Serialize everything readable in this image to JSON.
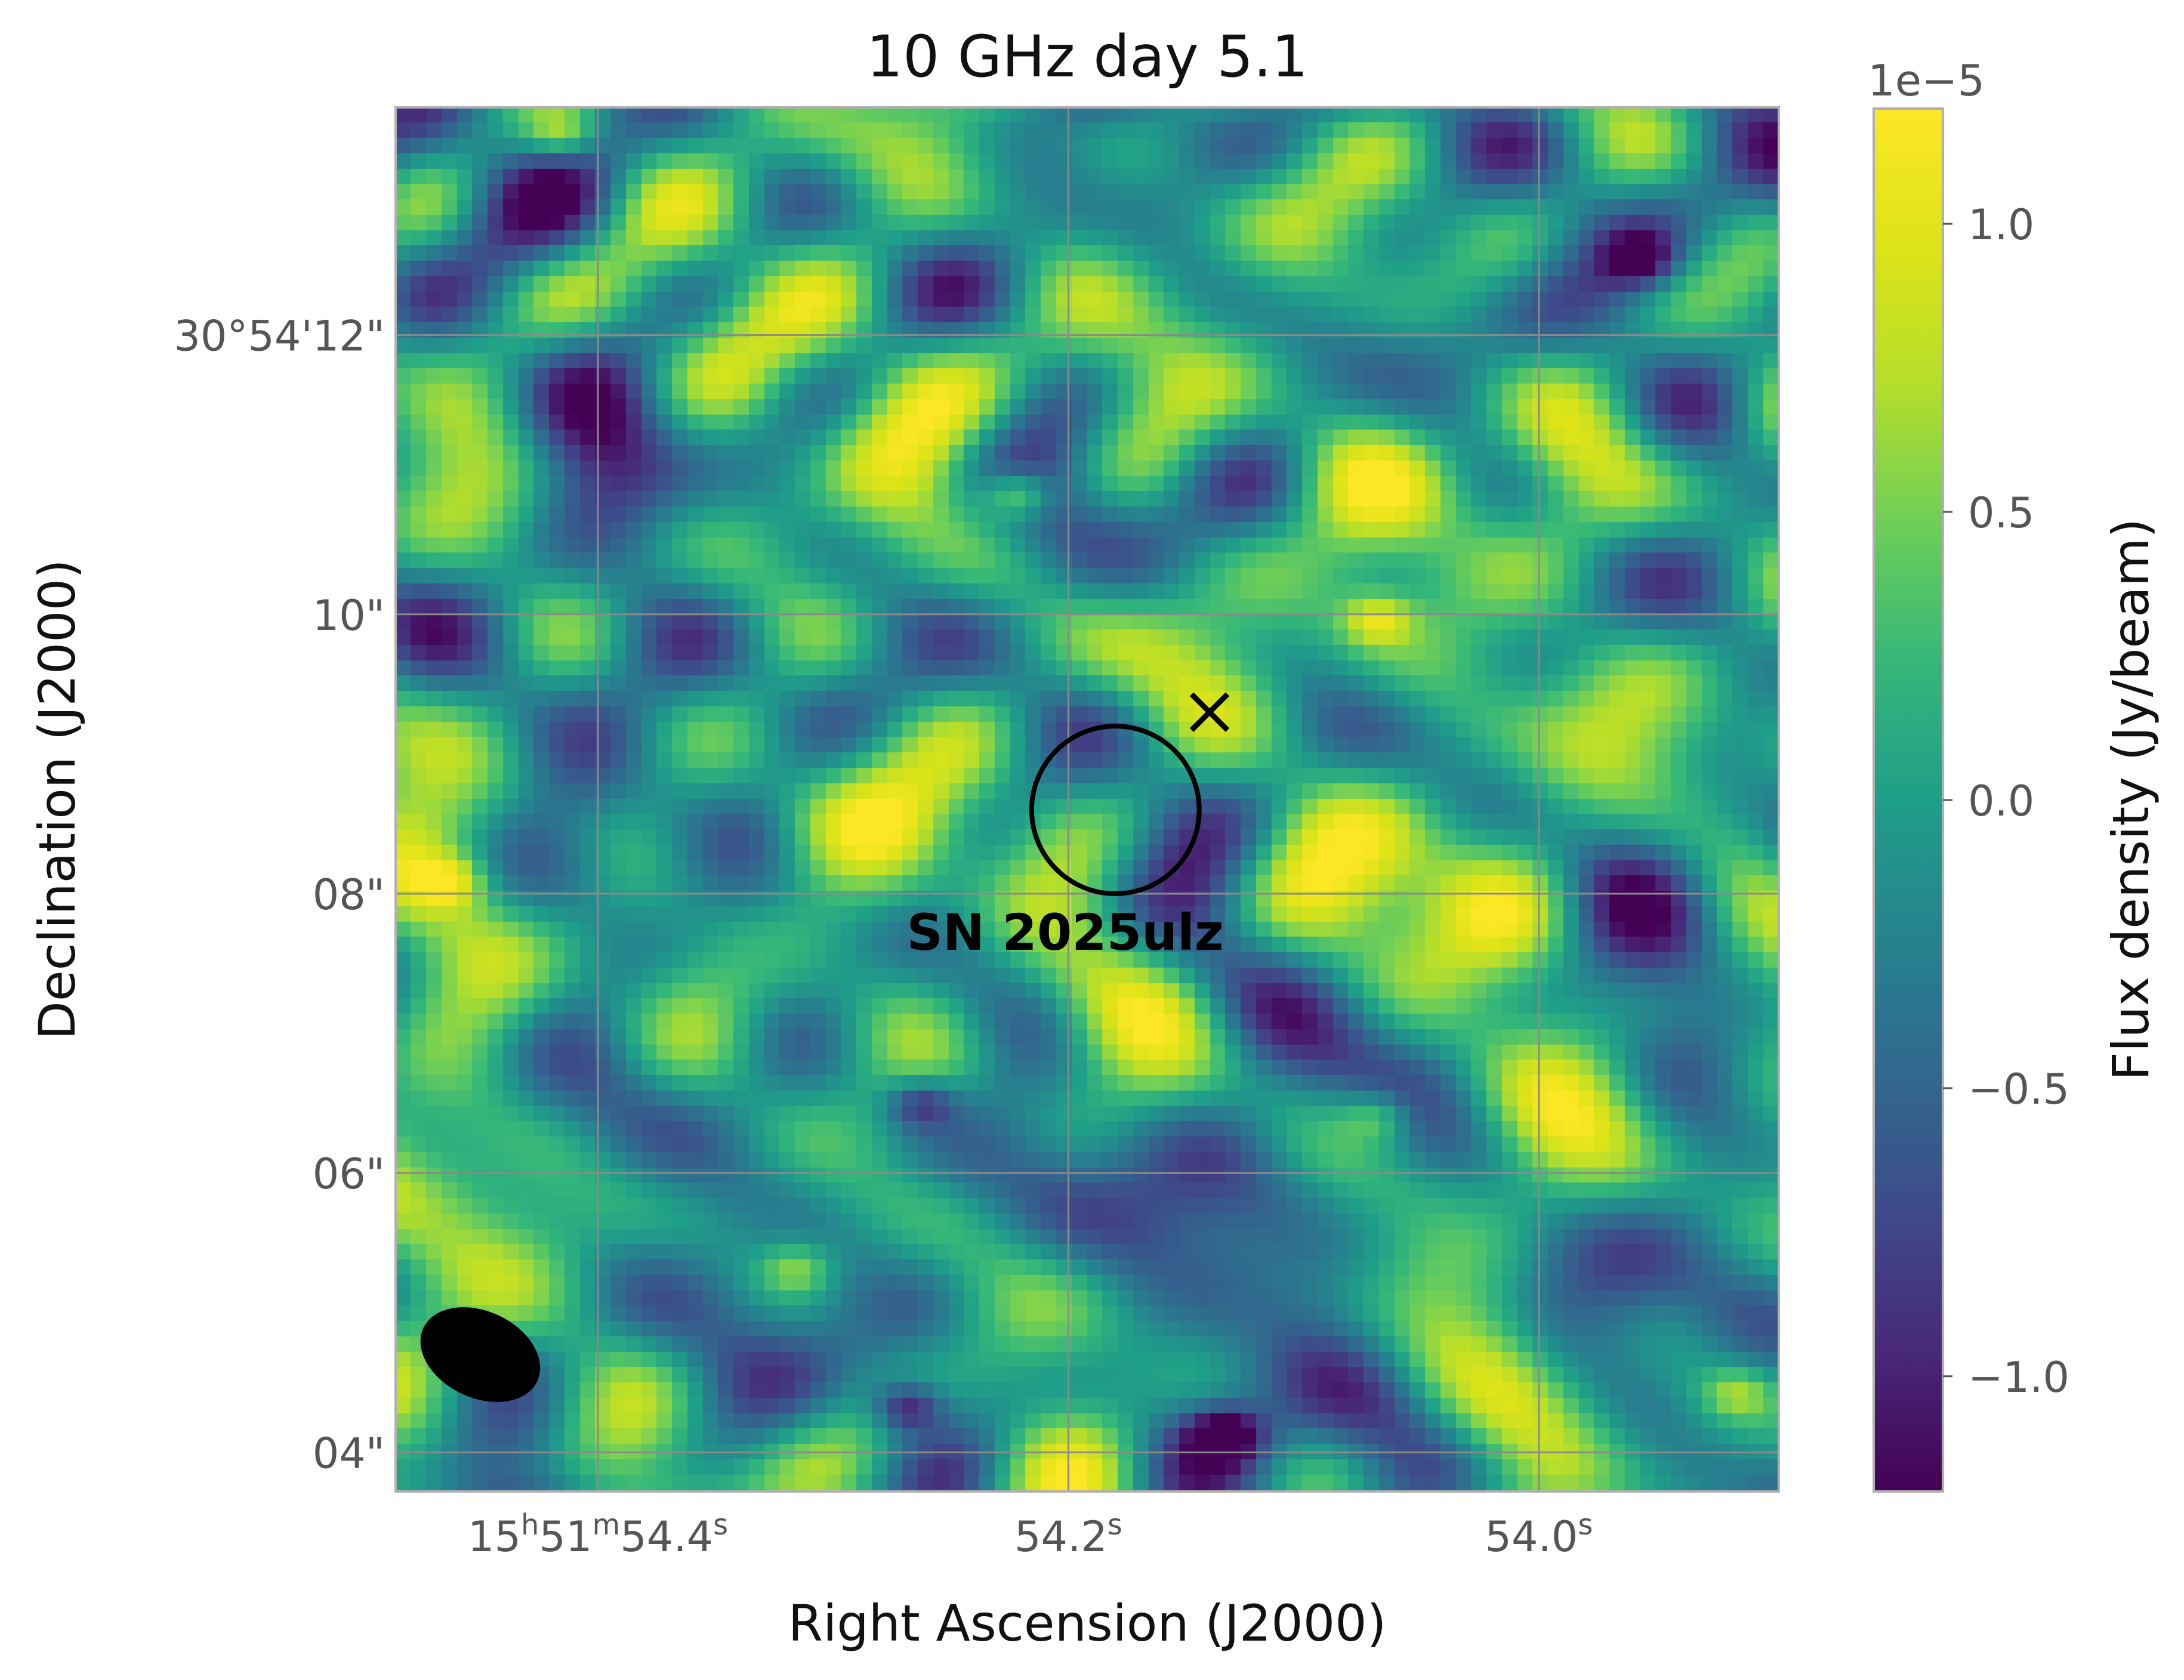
{
  "chart_data": {
    "type": "heatmap",
    "title": "10 GHz day 5.1",
    "xlabel": "Right Ascension (J2000)",
    "ylabel": "Declination (J2000)",
    "x_ticks": [
      {
        "h": "15",
        "hu": "h",
        "m": "51",
        "mu": "m",
        "s": "54.4",
        "su": "s",
        "ra_sec": 54.4
      },
      {
        "s": "54.2",
        "su": "s",
        "ra_sec": 54.2
      },
      {
        "s": "54.0",
        "su": "s",
        "ra_sec": 54.0
      }
    ],
    "y_ticks": [
      {
        "label": "30°54'12\"",
        "dec_arcsec": 12
      },
      {
        "label": "10\"",
        "dec_arcsec": 10
      },
      {
        "label": "08\"",
        "dec_arcsec": 8
      },
      {
        "label": "06\"",
        "dec_arcsec": 6
      },
      {
        "label": "04\"",
        "dec_arcsec": 4
      }
    ],
    "x_range_ra_sec": [
      54.486,
      53.898
    ],
    "y_range_dec_arcsec": [
      3.72,
      13.63
    ],
    "grid": true,
    "colormap": "viridis",
    "colorbar": {
      "label": "Flux density (Jy/beam)",
      "offset_text": "1e−5",
      "range": [
        -1.2,
        1.2
      ],
      "ticks": [
        {
          "label": "1.0",
          "value": 1.0
        },
        {
          "label": "0.5",
          "value": 0.5
        },
        {
          "label": "0.0",
          "value": 0.0
        },
        {
          "label": "−0.5",
          "value": -0.5
        },
        {
          "label": "−1.0",
          "value": -1.0
        }
      ]
    },
    "source": {
      "label": "SN 2025ulz",
      "circle_center": {
        "ra_sec": 54.18,
        "dec_arcsec": 8.6
      },
      "circle_radius_arcsec": 0.6,
      "cross": {
        "ra_sec": 54.14,
        "dec_arcsec": 9.3
      }
    },
    "beam": {
      "ra_sec": 54.45,
      "dec_arcsec": 4.7,
      "major_arcsec": 0.9,
      "minor_arcsec": 0.62,
      "pa_deg": 25
    }
  },
  "colors": {
    "grid": "#8a8a8a",
    "frame": "#b0b0b0",
    "tick_text": "#555555",
    "label_text": "#111111",
    "marker": "#000000"
  }
}
